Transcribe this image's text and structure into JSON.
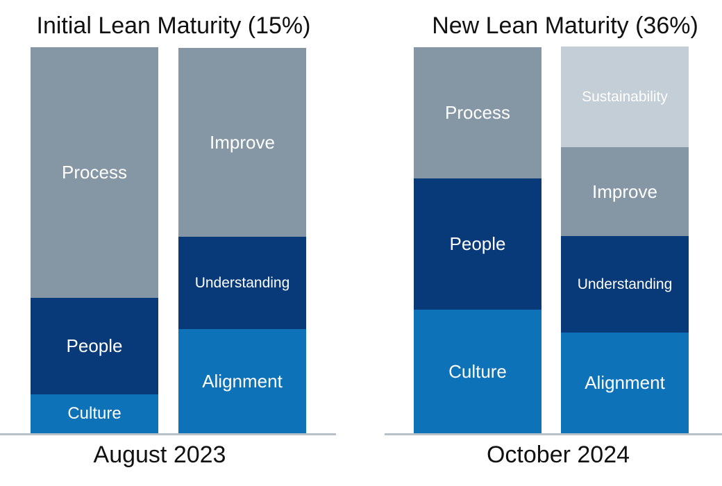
{
  "chart_data": [
    {
      "type": "stacked-bar",
      "title": "Initial Lean Maturity (15%)",
      "xlabel": "August 2023",
      "columns": [
        {
          "segments": [
            {
              "label": "Culture",
              "value": 10,
              "color": "#0d72b8"
            },
            {
              "label": "People",
              "value": 25,
              "color": "#083a7a"
            },
            {
              "label": "Process",
              "value": 65,
              "color": "#8597a5"
            }
          ]
        },
        {
          "segments": [
            {
              "label": "Alignment",
              "value": 27,
              "color": "#0d72b8"
            },
            {
              "label": "Understanding",
              "value": 24,
              "color": "#083a7a"
            },
            {
              "label": "Improve",
              "value": 49,
              "color": "#8597a5"
            }
          ]
        }
      ]
    },
    {
      "type": "stacked-bar",
      "title": "New Lean Maturity (36%)",
      "xlabel": "October 2024",
      "columns": [
        {
          "segments": [
            {
              "label": "Culture",
              "value": 32,
              "color": "#0d72b8"
            },
            {
              "label": "People",
              "value": 34,
              "color": "#083a7a"
            },
            {
              "label": "Process",
              "value": 34,
              "color": "#8597a5"
            }
          ]
        },
        {
          "segments": [
            {
              "label": "Alignment",
              "value": 26,
              "color": "#0d72b8"
            },
            {
              "label": "Understanding",
              "value": 25,
              "color": "#083a7a"
            },
            {
              "label": "Improve",
              "value": 23,
              "color": "#8597a5"
            },
            {
              "label": "Sustainability",
              "value": 26,
              "color": "#c4ced7"
            }
          ]
        }
      ]
    }
  ]
}
